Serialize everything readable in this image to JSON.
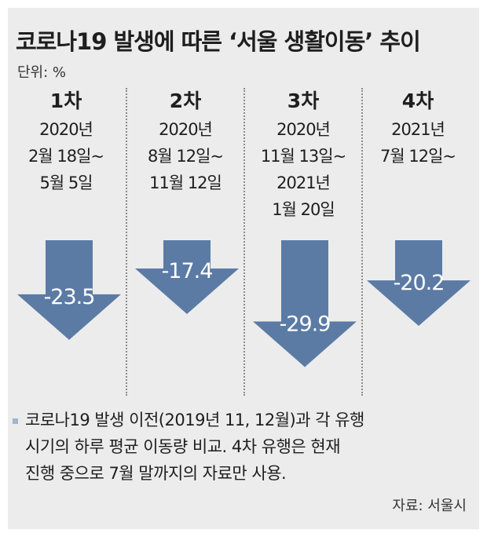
{
  "title": "코로나19 발생에 따른 ‘서울 생활이동’ 추이",
  "unit_label": "단위: %",
  "chart_data": {
    "type": "bar",
    "title": "코로나19 발생에 따른 ‘서울 생활이동’ 추이",
    "unit": "단위: %",
    "categories": [
      "1차",
      "2차",
      "3차",
      "4차"
    ],
    "periods": [
      [
        "2020년",
        "2월 18일~",
        "5월 5일"
      ],
      [
        "2020년",
        "8월 12일~",
        "11월 12일"
      ],
      [
        "2020년",
        "11월 13일~",
        "2021년",
        "1월 20일"
      ],
      [
        "2021년",
        "7월 12일~"
      ]
    ],
    "values": [
      -23.5,
      -17.4,
      -29.9,
      -20.2
    ],
    "value_labels": [
      "-23.5",
      "-17.4",
      "-29.9",
      "-20.2"
    ],
    "colors": {
      "bar": "#5b7ba5",
      "panel": "#ececec",
      "divider": "#8c8c8c"
    }
  },
  "note": {
    "lines": [
      "코로나19 발생 이전(2019년 11, 12월)과 각 유행",
      "시기의 하루 평균 이동량 비교. 4차 유행은 현재",
      "진행 중으로 7월 말까지의 자료만 사용."
    ]
  },
  "source": "자료: 서울시"
}
